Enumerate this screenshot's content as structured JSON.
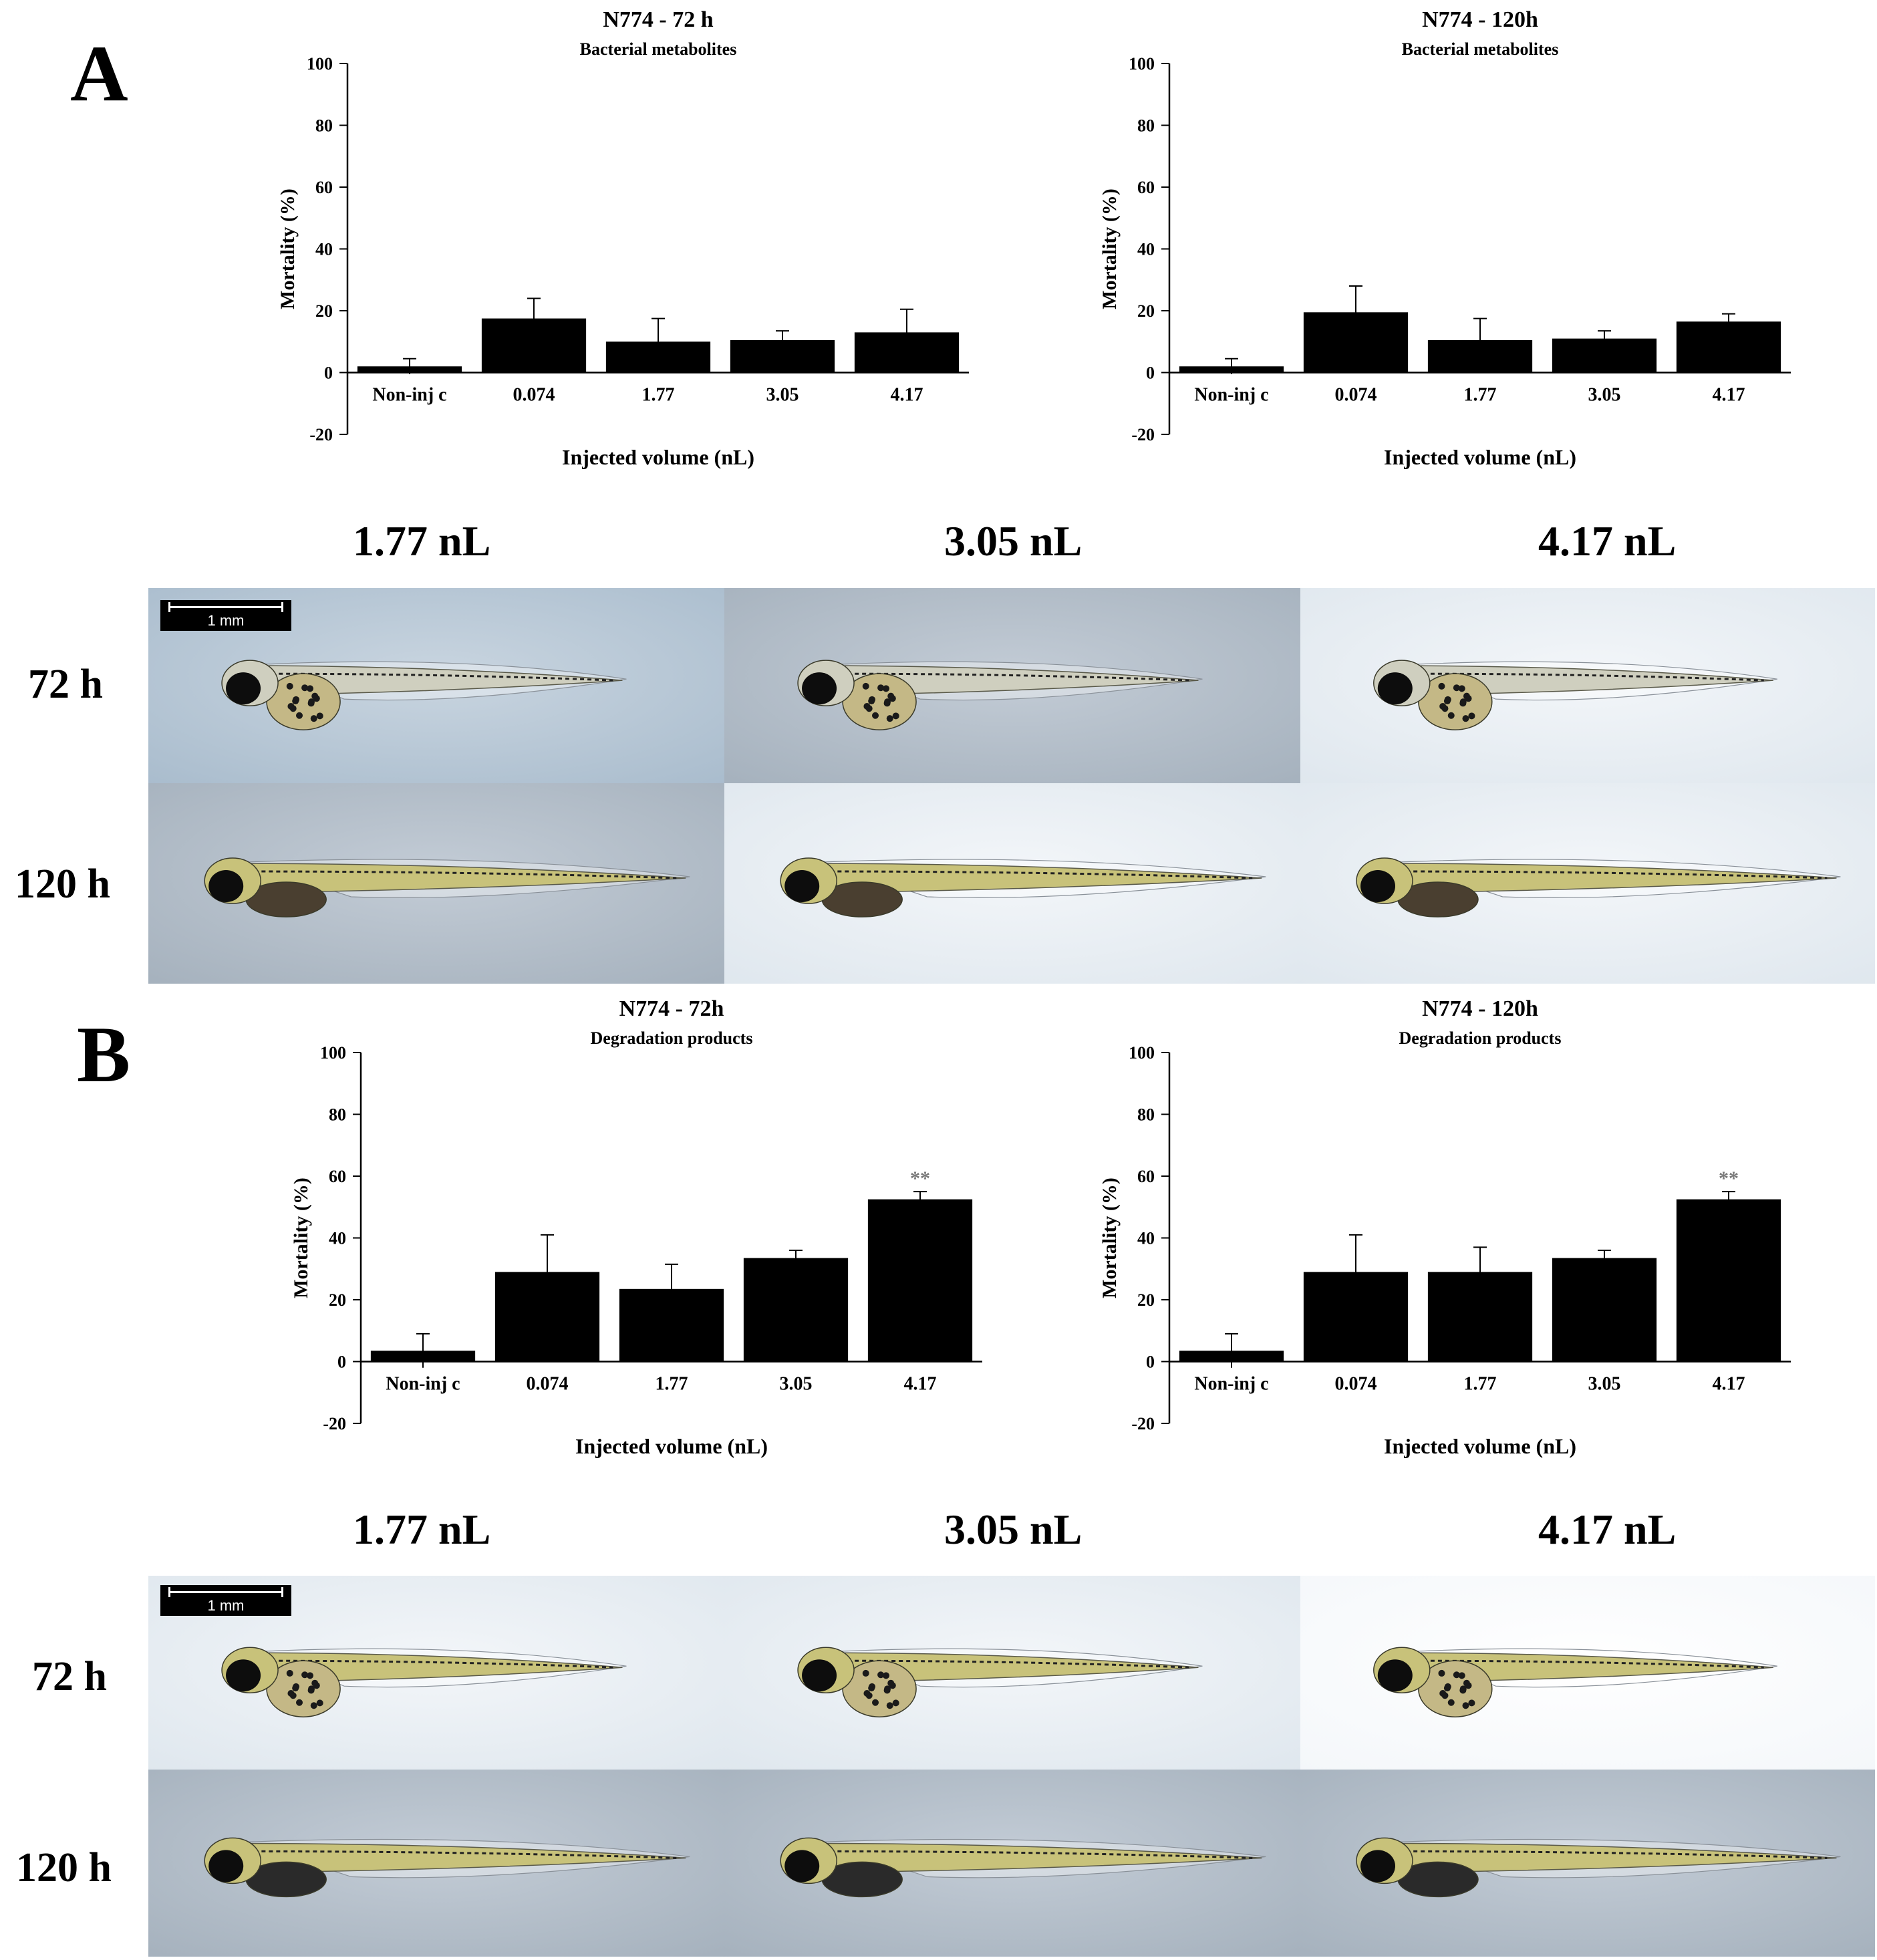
{
  "panels": {
    "A": {
      "letter": "A",
      "doses": [
        "1.77 nL",
        "3.05 nL",
        "4.17 nL"
      ],
      "times": [
        "72 h",
        "120 h"
      ],
      "scale_bar": "1 mm"
    },
    "B": {
      "letter": "B",
      "doses": [
        "1.77 nL",
        "3.05 nL",
        "4.17 nL"
      ],
      "times": [
        "72 h",
        "120 h"
      ],
      "scale_bar": "1 mm"
    }
  },
  "chart_data": [
    {
      "type": "bar",
      "title": "N774 - 72 h",
      "subtitle": "Bacterial metabolites",
      "xlabel": "Injected volume (nL)",
      "ylabel": "Mortality (%)",
      "categories": [
        "Non-inj c",
        "0.074",
        "1.77",
        "3.05",
        "4.17"
      ],
      "values": [
        2,
        17.5,
        10,
        10.5,
        13
      ],
      "errors": [
        2.5,
        6.5,
        7.5,
        3,
        7.5
      ],
      "annotations": [
        "",
        "",
        "",
        "",
        ""
      ],
      "ylim": [
        -20,
        100
      ],
      "yticks": [
        -20,
        0,
        20,
        40,
        60,
        80,
        100
      ],
      "grid": false
    },
    {
      "type": "bar",
      "title": "N774 - 120h",
      "subtitle": "Bacterial metabolites",
      "xlabel": "Injected volume (nL)",
      "ylabel": "Mortality (%)",
      "categories": [
        "Non-inj c",
        "0.074",
        "1.77",
        "3.05",
        "4.17"
      ],
      "values": [
        2,
        19.5,
        10.5,
        11,
        16.5
      ],
      "errors": [
        2.5,
        8.5,
        7,
        2.5,
        2.5
      ],
      "annotations": [
        "",
        "",
        "",
        "",
        ""
      ],
      "ylim": [
        -20,
        100
      ],
      "yticks": [
        -20,
        0,
        20,
        40,
        60,
        80,
        100
      ],
      "grid": false
    },
    {
      "type": "bar",
      "title": "N774 - 72h",
      "subtitle": "Degradation products",
      "xlabel": "Injected volume (nL)",
      "ylabel": "Mortality (%)",
      "categories": [
        "Non-inj c",
        "0.074",
        "1.77",
        "3.05",
        "4.17"
      ],
      "values": [
        3.5,
        29,
        23.5,
        33.5,
        52.5
      ],
      "errors": [
        5.5,
        12,
        8,
        2.5,
        2.5
      ],
      "annotations": [
        "",
        "",
        "",
        "",
        "**"
      ],
      "ylim": [
        -20,
        100
      ],
      "yticks": [
        -20,
        0,
        20,
        40,
        60,
        80,
        100
      ],
      "grid": false
    },
    {
      "type": "bar",
      "title": "N774 - 120h",
      "subtitle": "Degradation products",
      "xlabel": "Injected volume (nL)",
      "ylabel": "Mortality (%)",
      "categories": [
        "Non-inj c",
        "0.074",
        "1.77",
        "3.05",
        "4.17"
      ],
      "values": [
        3.5,
        29,
        29,
        33.5,
        52.5
      ],
      "errors": [
        5.5,
        12,
        8,
        2.5,
        2.5
      ],
      "annotations": [
        "",
        "",
        "",
        "",
        "**"
      ],
      "ylim": [
        -20,
        100
      ],
      "yticks": [
        -20,
        0,
        20,
        40,
        60,
        80,
        100
      ],
      "grid": false
    }
  ],
  "colors": {
    "bar": "#000000",
    "annotation": "#7a7a7a",
    "photo_blue_grey": "#b4c3d2",
    "photo_light": "#e8eef4",
    "fish_yellow": "#c9c06a"
  }
}
